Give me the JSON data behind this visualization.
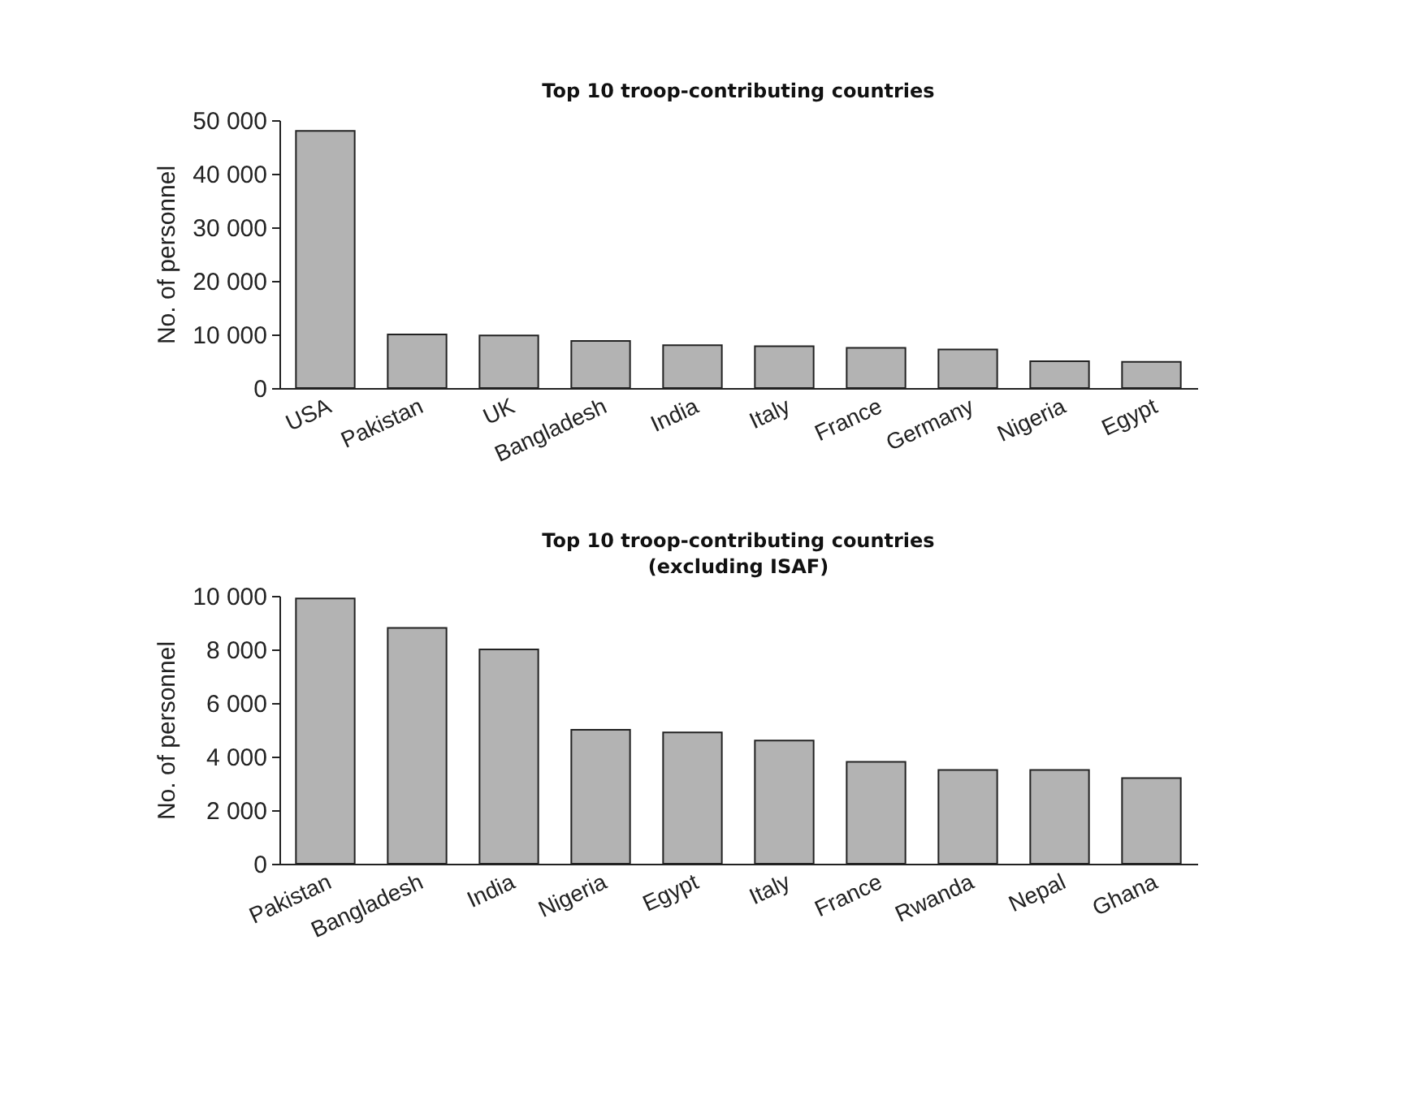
{
  "chart_data": [
    {
      "type": "bar",
      "title": "Top 10 troop-contributing countries",
      "ylabel": "No. of personnel",
      "categories": [
        "USA",
        "Pakistan",
        "UK",
        "Bangladesh",
        "India",
        "Italy",
        "France",
        "Germany",
        "Nigeria",
        "Egypt"
      ],
      "values": [
        48000,
        10000,
        9800,
        8800,
        8000,
        7800,
        7500,
        7200,
        5000,
        4900
      ],
      "color": "#b3b3b3",
      "ylim": [
        0,
        50000
      ],
      "yticks": [
        0,
        {
          "value": 10000,
          "label": "10 000"
        },
        {
          "value": 20000,
          "label": "20 000"
        },
        {
          "value": 30000,
          "label": "30 000"
        },
        {
          "value": 40000,
          "label": "40 000"
        },
        {
          "value": 50000,
          "label": "50 000"
        }
      ],
      "grid": false
    },
    {
      "type": "bar",
      "title": [
        "Top 10 troop-contributing countries",
        "(excluding ISAF)"
      ],
      "ylabel": "No. of personnel",
      "categories": [
        "Pakistan",
        "Bangladesh",
        "India",
        "Nigeria",
        "Egypt",
        "Italy",
        "France",
        "Rwanda",
        "Nepal",
        "Ghana"
      ],
      "values": [
        9900,
        8800,
        8000,
        5000,
        4900,
        4600,
        3800,
        3500,
        3500,
        3200
      ],
      "color": "#b3b3b3",
      "ylim": [
        0,
        10000
      ],
      "yticks": [
        0,
        {
          "value": 2000,
          "label": "2 000"
        },
        {
          "value": 4000,
          "label": "4 000"
        },
        {
          "value": 6000,
          "label": "6 000"
        },
        {
          "value": 8000,
          "label": "8 000"
        },
        {
          "value": 10000,
          "label": "10 000"
        }
      ],
      "grid": false
    }
  ]
}
